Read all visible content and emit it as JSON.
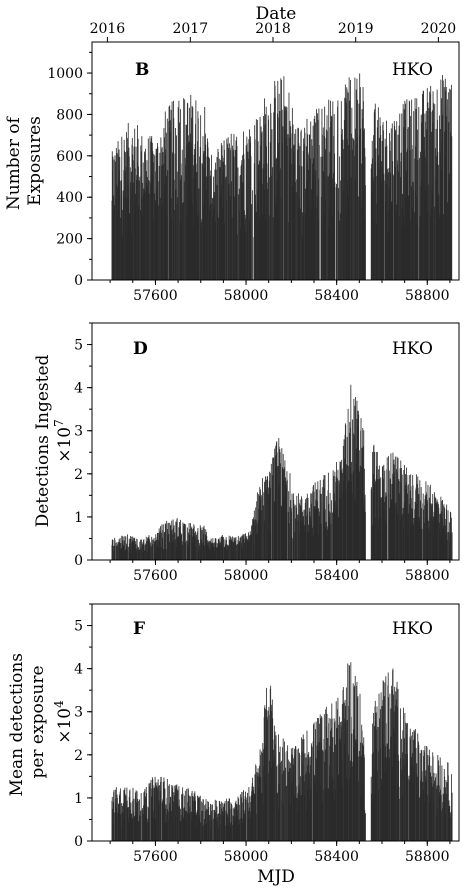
{
  "figure": {
    "top_axis_title": "Date",
    "bottom_axis_title": "MJD",
    "top_year_ticks": [
      {
        "label": "2016",
        "mjd": 57388
      },
      {
        "label": "2017",
        "mjd": 57754
      },
      {
        "label": "2018",
        "mjd": 58119
      },
      {
        "label": "2019",
        "mjd": 58484
      },
      {
        "label": "2020",
        "mjd": 58849
      }
    ],
    "bar_color": "#2a2a2a"
  },
  "chart_data": [
    {
      "type": "bar",
      "panel_letter": "B",
      "site_label": "HKO",
      "ylabel_lines": [
        "Number of",
        "Exposures"
      ],
      "ylabel_multiplier": "",
      "xlabel": "",
      "xlim": [
        57320,
        58940
      ],
      "ylim": [
        0,
        1150
      ],
      "y_ticks": [
        "0",
        "200",
        "400",
        "600",
        "800",
        "1000"
      ],
      "x_ticks": [
        "57600",
        "58000",
        "58400",
        "58800"
      ],
      "nightly_envelope": {
        "x_mjd": [
          57408,
          57440,
          57480,
          57520,
          57540,
          57600,
          57640,
          57700,
          57760,
          57820,
          57840,
          57870,
          57900,
          57960,
          58020,
          58060,
          58100,
          58140,
          58180,
          58220,
          58250,
          58300,
          58360,
          58420,
          58460,
          58500,
          58520,
          58540,
          58560,
          58600,
          58640,
          58700,
          58760,
          58800,
          58850,
          58900,
          58910
        ],
        "y_max": [
          620,
          690,
          760,
          760,
          720,
          690,
          820,
          900,
          910,
          870,
          600,
          620,
          700,
          730,
          790,
          820,
          960,
          990,
          1000,
          760,
          780,
          830,
          880,
          920,
          990,
          1000,
          980,
          0,
          900,
          800,
          800,
          870,
          900,
          950,
          1000,
          1000,
          980
        ]
      }
    },
    {
      "type": "bar",
      "panel_letter": "D",
      "site_label": "HKO",
      "ylabel_lines": [
        "Detections Ingested"
      ],
      "ylabel_multiplier": "×10^7",
      "xlabel": "",
      "xlim": [
        57320,
        58940
      ],
      "ylim": [
        0,
        5.5
      ],
      "y_ticks": [
        "0",
        "1",
        "2",
        "3",
        "4",
        "5"
      ],
      "x_ticks": [
        "57600",
        "58000",
        "58400",
        "58800"
      ],
      "nightly_envelope": {
        "x_mjd": [
          57408,
          57440,
          57480,
          57520,
          57540,
          57600,
          57640,
          57700,
          57760,
          57820,
          57840,
          57870,
          57900,
          57960,
          58020,
          58060,
          58100,
          58140,
          58180,
          58220,
          58250,
          58300,
          58360,
          58420,
          58460,
          58500,
          58520,
          58540,
          58560,
          58600,
          58640,
          58700,
          58760,
          58800,
          58850,
          58900,
          58910
        ],
        "y_max": [
          0.5,
          0.55,
          0.6,
          0.55,
          0.5,
          0.65,
          0.9,
          1.0,
          0.85,
          0.8,
          0.55,
          0.5,
          0.6,
          0.55,
          0.7,
          1.9,
          2.0,
          2.9,
          2.3,
          1.6,
          1.5,
          1.8,
          2.1,
          2.4,
          4.2,
          3.6,
          3.0,
          0,
          2.8,
          2.3,
          2.6,
          2.2,
          2.0,
          1.8,
          1.6,
          1.2,
          1.0
        ]
      }
    },
    {
      "type": "bar",
      "panel_letter": "F",
      "site_label": "HKO",
      "ylabel_lines": [
        "Mean detections",
        "per exposure"
      ],
      "ylabel_multiplier": "×10^4",
      "xlabel": "MJD",
      "xlim": [
        57320,
        58940
      ],
      "ylim": [
        0,
        5.5
      ],
      "y_ticks": [
        "0",
        "1",
        "2",
        "3",
        "4",
        "5"
      ],
      "x_ticks": [
        "57600",
        "58000",
        "58400",
        "58800"
      ],
      "nightly_envelope": {
        "x_mjd": [
          57408,
          57440,
          57480,
          57520,
          57540,
          57600,
          57640,
          57700,
          57760,
          57820,
          57840,
          57870,
          57900,
          57960,
          58020,
          58060,
          58100,
          58140,
          58180,
          58220,
          58250,
          58300,
          58360,
          58420,
          58460,
          58500,
          58520,
          58540,
          58560,
          58600,
          58640,
          58700,
          58760,
          58800,
          58850,
          58900,
          58910
        ],
        "y_max": [
          1.2,
          1.3,
          1.4,
          1.2,
          1.1,
          1.6,
          1.5,
          1.3,
          1.2,
          1.0,
          0.9,
          1.0,
          1.0,
          1.1,
          1.3,
          2.2,
          4.0,
          2.6,
          2.3,
          2.2,
          2.5,
          2.8,
          3.2,
          3.4,
          4.4,
          3.6,
          2.5,
          0,
          3.2,
          3.8,
          4.3,
          3.0,
          2.5,
          2.2,
          2.0,
          1.8,
          1.6
        ]
      }
    }
  ]
}
